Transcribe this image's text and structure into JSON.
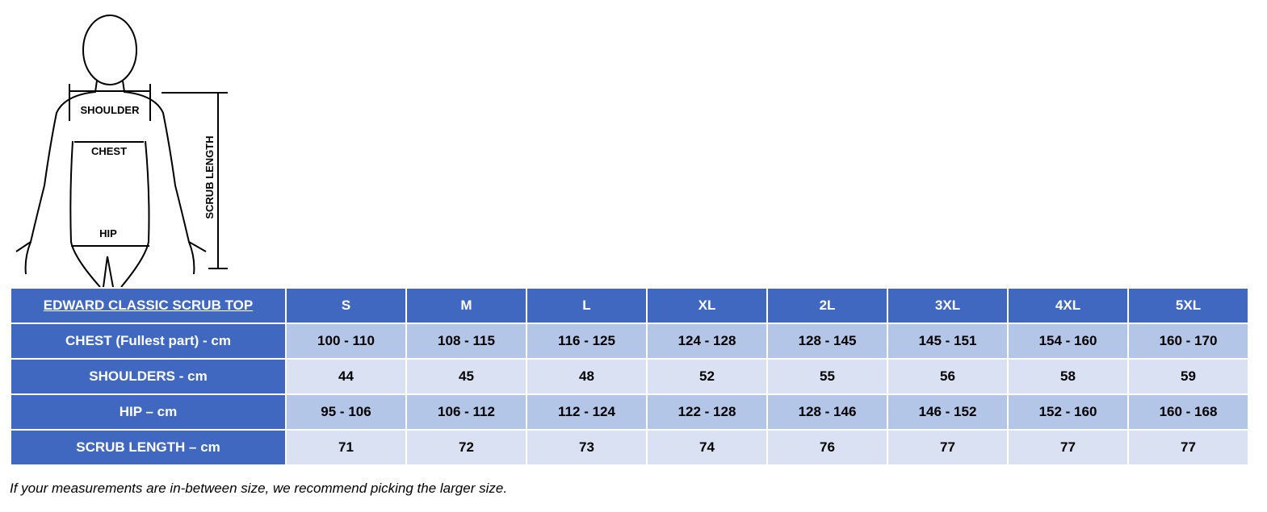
{
  "figure": {
    "shoulder": "SHOULDER",
    "chest": "CHEST",
    "hip": "HIP",
    "length": "SCRUB LENGTH"
  },
  "table": {
    "header": [
      "EDWARD CLASSIC SCRUB TOP",
      "S",
      "M",
      "L",
      "XL",
      "2L",
      "3XL",
      "4XL",
      "5XL"
    ],
    "rows": [
      [
        "CHEST  (Fullest part) - cm",
        "100 - 110",
        "108 - 115",
        "116 - 125",
        "124 - 128",
        "128 - 145",
        "145 - 151",
        "154 - 160",
        "160 - 170"
      ],
      [
        "SHOULDERS - cm",
        44,
        45,
        48,
        52,
        55,
        56,
        58,
        59
      ],
      [
        "HIP – cm",
        "95 - 106",
        "106 - 112",
        "112 - 124",
        "122 - 128",
        "128 - 146",
        "146 - 152",
        "152 - 160",
        "160 - 168"
      ],
      [
        "SCRUB LENGTH – cm",
        71,
        72,
        73,
        74,
        76,
        77,
        77,
        77
      ]
    ]
  },
  "note": "If your measurements are in-between size, we recommend picking the larger size."
}
